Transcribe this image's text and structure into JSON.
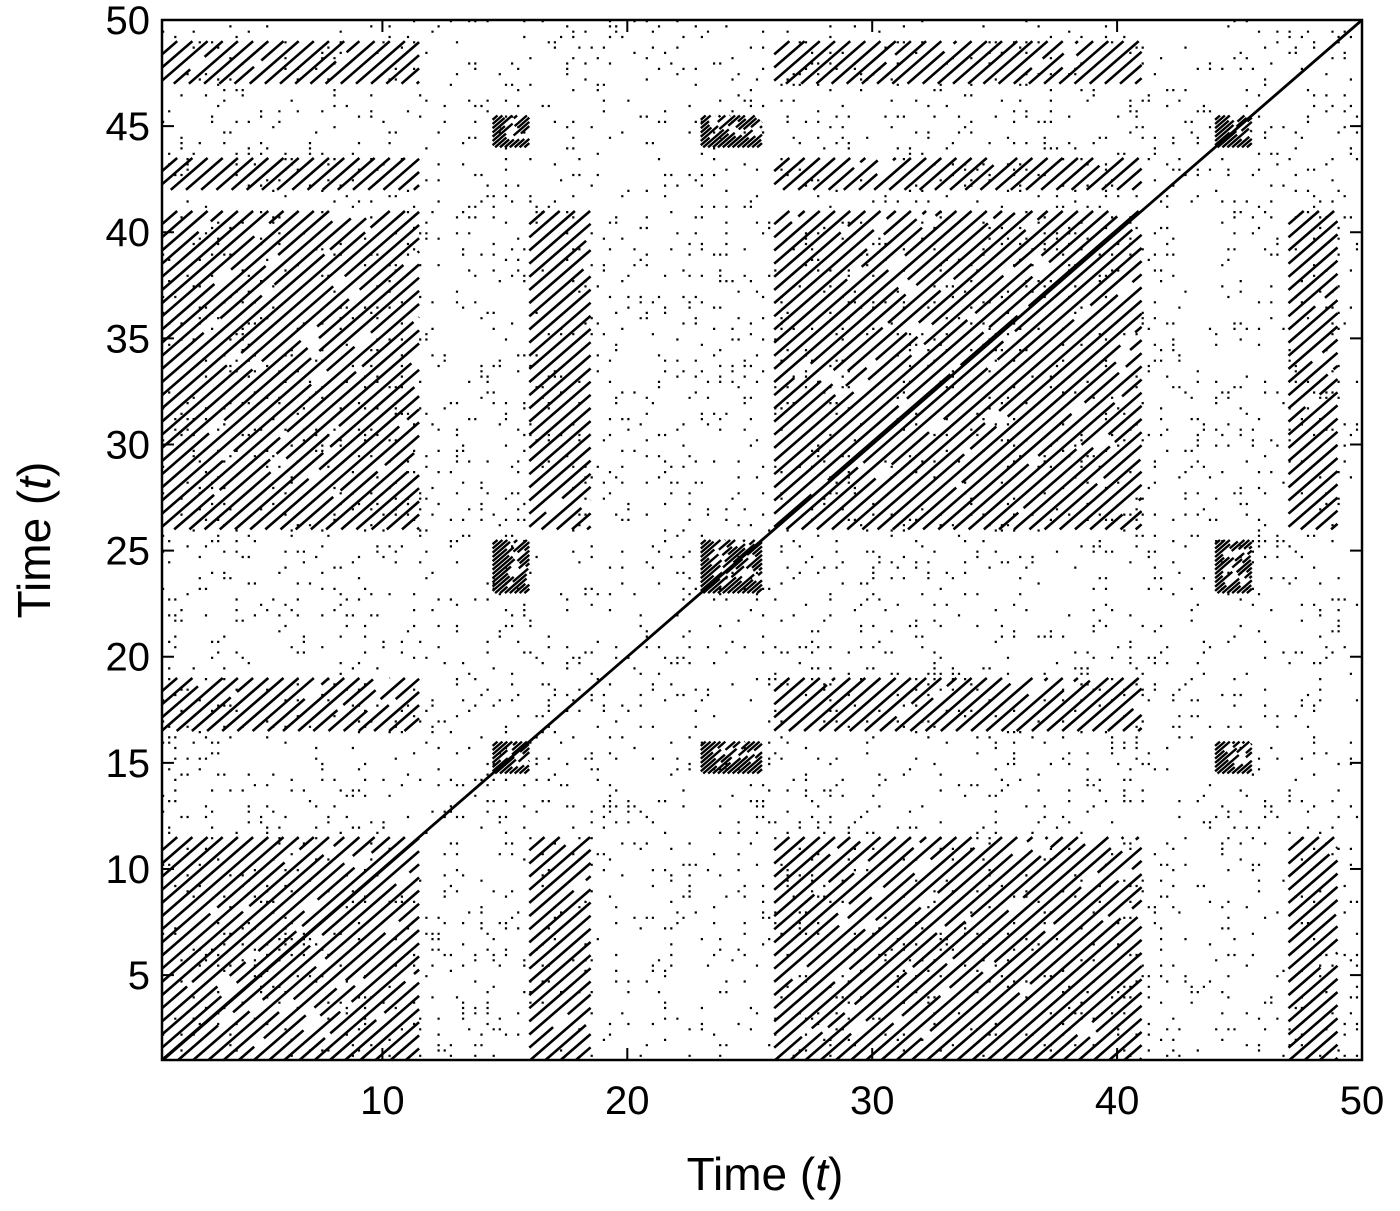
{
  "chart_data": {
    "type": "recurrence_plot",
    "title": "",
    "xlabel": "Time (t)",
    "ylabel": "Time (t)",
    "xlabel_main": "Time",
    "ylabel_main": "Time",
    "axis_var": "t",
    "xlim": [
      1,
      50
    ],
    "ylim": [
      1,
      50
    ],
    "x_ticks": [
      10,
      20,
      30,
      40,
      50
    ],
    "y_ticks": [
      5,
      10,
      15,
      20,
      25,
      30,
      35,
      40,
      45,
      50
    ],
    "x_tick_labels": [
      "10",
      "20",
      "30",
      "40",
      "50"
    ],
    "y_tick_labels": [
      "5",
      "10",
      "15",
      "20",
      "25",
      "30",
      "35",
      "40",
      "45",
      "50"
    ],
    "grid": false,
    "legend": "none",
    "mark_color": "#000000",
    "background": "#ffffff",
    "main_diagonal": [
      [
        1,
        1
      ],
      [
        50,
        50
      ]
    ],
    "dense_diagonal_blocks": [
      {
        "x": [
          1,
          11.5
        ],
        "y": [
          1,
          11.5
        ]
      },
      {
        "x": [
          26,
          41
        ],
        "y": [
          1,
          11.5
        ]
      },
      {
        "x": [
          1,
          11.5
        ],
        "y": [
          26,
          41
        ]
      },
      {
        "x": [
          26,
          41
        ],
        "y": [
          26,
          41
        ]
      },
      {
        "x": [
          1,
          11.5
        ],
        "y": [
          16.5,
          19
        ]
      },
      {
        "x": [
          26,
          41
        ],
        "y": [
          16.5,
          19
        ]
      },
      {
        "x": [
          1,
          11.5
        ],
        "y": [
          42,
          43.5
        ]
      },
      {
        "x": [
          26,
          41
        ],
        "y": [
          42,
          43.5
        ]
      },
      {
        "x": [
          1,
          11.5
        ],
        "y": [
          47,
          49
        ]
      },
      {
        "x": [
          26,
          41
        ],
        "y": [
          47,
          49
        ]
      },
      {
        "x": [
          16,
          18.5
        ],
        "y": [
          1,
          11.5
        ]
      },
      {
        "x": [
          16,
          18.5
        ],
        "y": [
          26,
          41
        ]
      },
      {
        "x": [
          47,
          49
        ],
        "y": [
          1,
          11.5
        ]
      },
      {
        "x": [
          47,
          49
        ],
        "y": [
          26,
          41
        ]
      }
    ],
    "cross_hatch_patches": [
      {
        "x": [
          14.5,
          16
        ],
        "y": [
          23,
          25.5
        ]
      },
      {
        "x": [
          23,
          25.5
        ],
        "y": [
          23,
          25.5
        ]
      },
      {
        "x": [
          44,
          45.5
        ],
        "y": [
          23,
          25.5
        ]
      },
      {
        "x": [
          14.5,
          16
        ],
        "y": [
          14.5,
          16
        ]
      },
      {
        "x": [
          23,
          25.5
        ],
        "y": [
          14.5,
          16
        ]
      },
      {
        "x": [
          44,
          45.5
        ],
        "y": [
          14.5,
          16
        ]
      },
      {
        "x": [
          14.5,
          16
        ],
        "y": [
          44,
          45.5
        ]
      },
      {
        "x": [
          23,
          25.5
        ],
        "y": [
          44,
          45.5
        ]
      },
      {
        "x": [
          44,
          45.5
        ],
        "y": [
          44,
          45.5
        ]
      }
    ]
  }
}
